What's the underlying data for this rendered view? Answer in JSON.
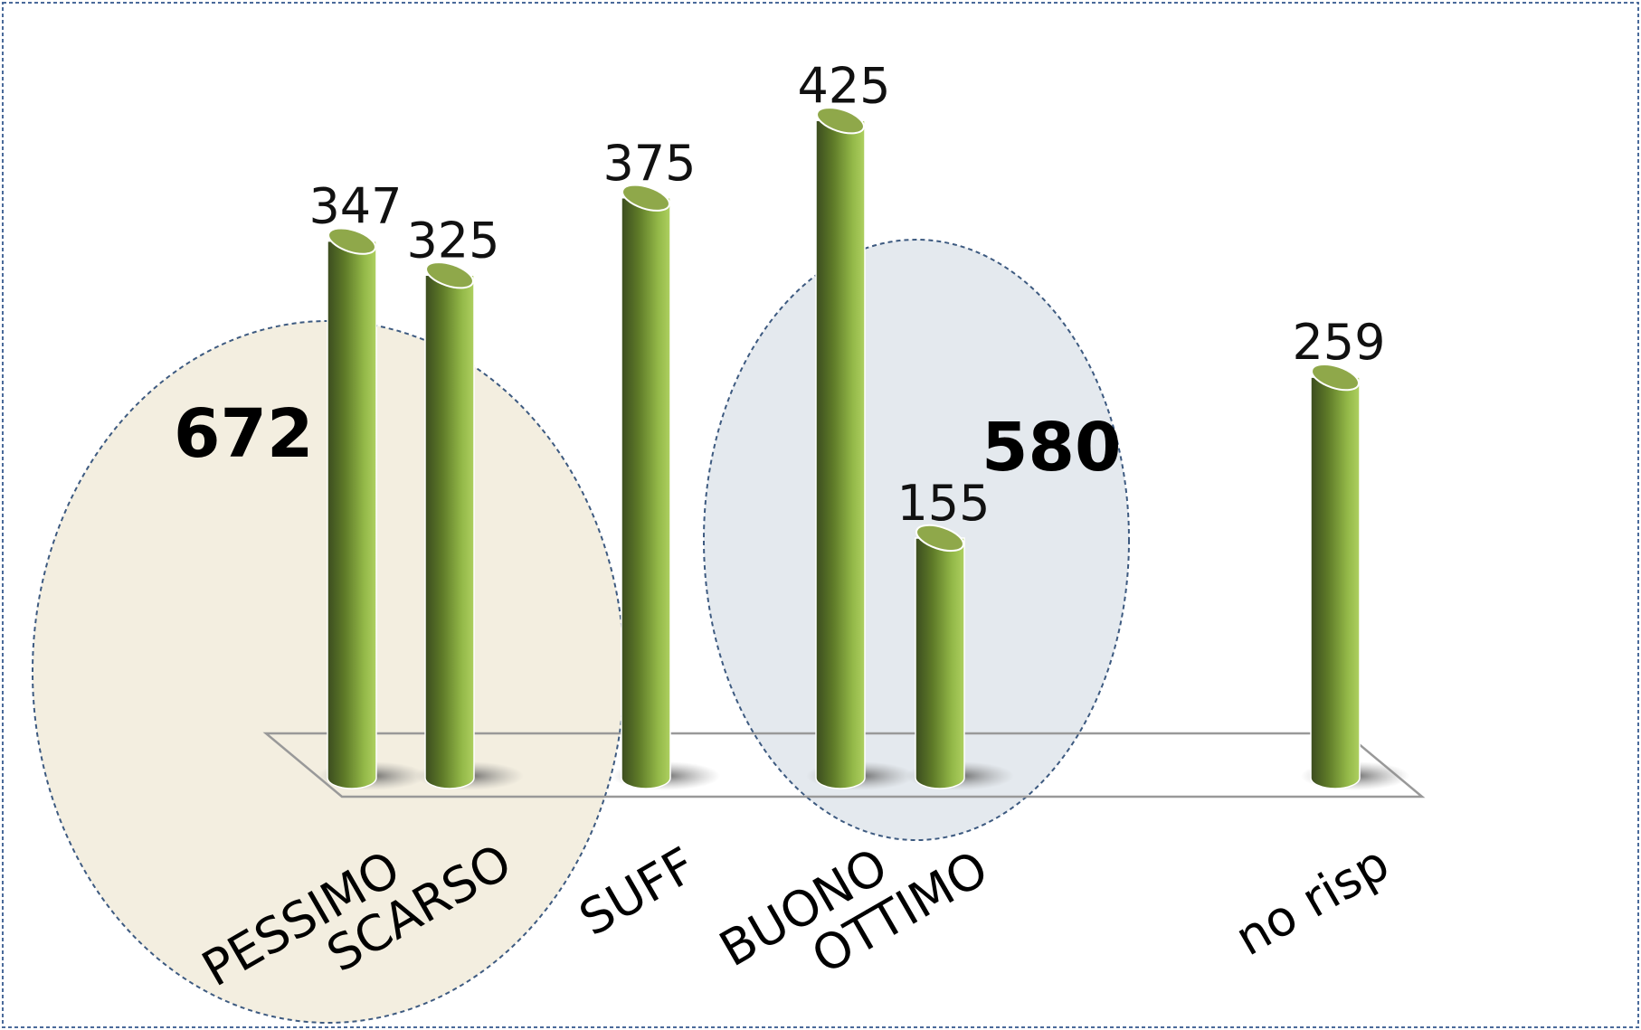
{
  "chart_data": {
    "type": "bar",
    "style": "3d-cylinder",
    "categories": [
      "PESSIMO",
      "SCARSO",
      "SUFF",
      "BUONO",
      "OTTIMO",
      "no risp"
    ],
    "values": [
      347,
      325,
      375,
      425,
      155,
      259
    ],
    "groups": [
      {
        "total": "672",
        "members": [
          "PESSIMO",
          "SCARSO"
        ],
        "fill": "#f3eee0"
      },
      {
        "total": "580",
        "members": [
          "BUONO",
          "OTTIMO"
        ],
        "fill": "#e4e9ee"
      }
    ],
    "title": "",
    "xlabel": "",
    "ylabel": "",
    "grid": false,
    "legend": "none"
  },
  "colors": {
    "bar_dark": "#3b4c1f",
    "bar_mid": "#7d9e35",
    "bar_light": "#a9cc5a",
    "bar_top": "#8fa84a",
    "ellipse_border": "#3d5a80",
    "frame_border": "#4a6a9a",
    "floor_border": "#999999"
  }
}
